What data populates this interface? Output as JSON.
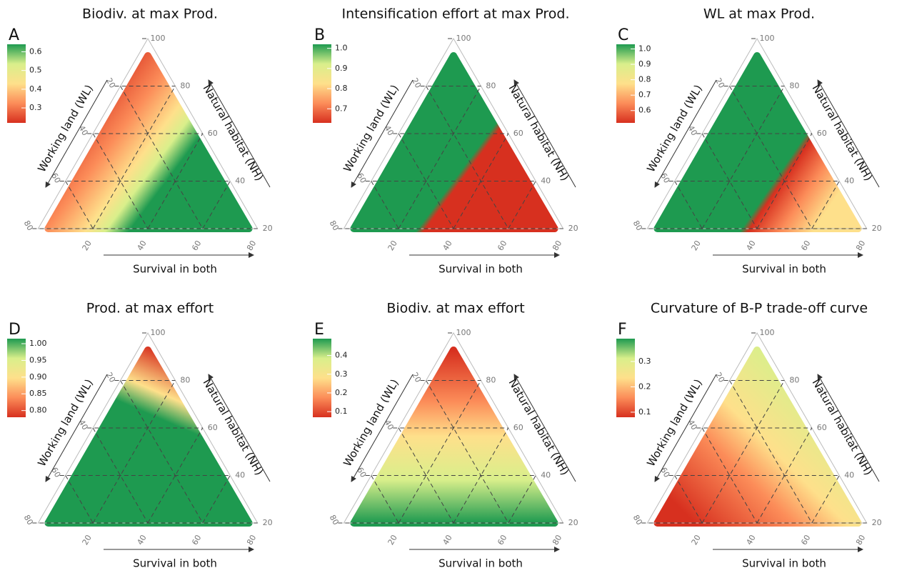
{
  "chart_data": [
    {
      "type": "ternary",
      "label": "A",
      "title": "Biodiv. at max Prod.",
      "colorbar": {
        "lim": [
          0.22,
          0.64
        ],
        "ticks": [
          0.3,
          0.4,
          0.5,
          0.6
        ],
        "colors": [
          "#d7301f",
          "#fc8d59",
          "#fee08b",
          "#d9ef8b",
          "#1e9a50"
        ]
      },
      "axes": {
        "left": {
          "title": "Working land (WL)",
          "lim": [
            0,
            80
          ],
          "ticks": [
            20,
            40,
            60,
            80
          ]
        },
        "right": {
          "title": "Natural habitat (NH)",
          "lim": [
            20,
            100
          ],
          "ticks": [
            20,
            40,
            60,
            80,
            100
          ]
        },
        "bottom": {
          "title": "Survival in both",
          "lim": [
            0,
            80
          ],
          "ticks": [
            20,
            40,
            60,
            80
          ]
        }
      }
    },
    {
      "type": "ternary",
      "label": "B",
      "title": "Intensification effort at max Prod.",
      "colorbar": {
        "lim": [
          0.63,
          1.02
        ],
        "ticks": [
          0.7,
          0.8,
          0.9,
          {
            "value": 1,
            "label": "1.0"
          }
        ],
        "colors": [
          "#d7301f",
          "#fc8d59",
          "#fee08b",
          "#d9ef8b",
          "#1e9a50"
        ]
      },
      "axes": {
        "left": {
          "title": "Working land (WL)",
          "lim": [
            0,
            80
          ],
          "ticks": [
            20,
            40,
            60,
            80
          ]
        },
        "right": {
          "title": "Natural habitat (NH)",
          "lim": [
            20,
            100
          ],
          "ticks": [
            20,
            40,
            60,
            80,
            100
          ]
        },
        "bottom": {
          "title": "Survival in both",
          "lim": [
            0,
            80
          ],
          "ticks": [
            20,
            40,
            60,
            80
          ]
        }
      }
    },
    {
      "type": "ternary",
      "label": "C",
      "title": "WL at max Prod.",
      "colorbar": {
        "lim": [
          0.52,
          1.03
        ],
        "ticks": [
          0.6,
          0.7,
          0.8,
          0.9,
          {
            "value": 1,
            "label": "1.0"
          }
        ],
        "colors": [
          "#d7301f",
          "#fc8d59",
          "#fee08b",
          "#d9ef8b",
          "#1e9a50"
        ]
      },
      "axes": {
        "left": {
          "title": "Working land (WL)",
          "lim": [
            0,
            80
          ],
          "ticks": [
            20,
            40,
            60,
            80
          ]
        },
        "right": {
          "title": "Natural habitat (NH)",
          "lim": [
            20,
            100
          ],
          "ticks": [
            20,
            40,
            60,
            80,
            100
          ]
        },
        "bottom": {
          "title": "Survival in both",
          "lim": [
            0,
            80
          ],
          "ticks": [
            20,
            40,
            60,
            80
          ]
        }
      }
    },
    {
      "type": "ternary",
      "label": "D",
      "title": "Prod. at max effort",
      "colorbar": {
        "lim": [
          0.78,
          1.015
        ],
        "ticks": [
          {
            "value": 0.8,
            "label": "0.80"
          },
          0.85,
          {
            "value": 0.9,
            "label": "0.90"
          },
          0.95,
          {
            "value": 1,
            "label": "1.00"
          }
        ],
        "colors": [
          "#d7301f",
          "#fc8d59",
          "#fee08b",
          "#d9ef8b",
          "#1e9a50"
        ]
      },
      "axes": {
        "left": {
          "title": "Working land (WL)",
          "lim": [
            0,
            80
          ],
          "ticks": [
            20,
            40,
            60,
            80
          ]
        },
        "right": {
          "title": "Natural habitat (NH)",
          "lim": [
            20,
            100
          ],
          "ticks": [
            20,
            40,
            60,
            80,
            100
          ]
        },
        "bottom": {
          "title": "Survival in both",
          "lim": [
            0,
            80
          ],
          "ticks": [
            20,
            40,
            60,
            80
          ]
        }
      }
    },
    {
      "type": "ternary",
      "label": "E",
      "title": "Biodiv. at max effort",
      "colorbar": {
        "lim": [
          0.07,
          0.49
        ],
        "ticks": [
          0.1,
          0.2,
          0.3,
          0.4
        ],
        "colors": [
          "#d7301f",
          "#fc8d59",
          "#fee08b",
          "#d9ef8b",
          "#1e9a50"
        ]
      },
      "axes": {
        "left": {
          "title": "Working land (WL)",
          "lim": [
            0,
            80
          ],
          "ticks": [
            20,
            40,
            60,
            80
          ]
        },
        "right": {
          "title": "Natural habitat (NH)",
          "lim": [
            20,
            100
          ],
          "ticks": [
            20,
            40,
            60,
            80,
            100
          ]
        },
        "bottom": {
          "title": "Survival in both",
          "lim": [
            0,
            80
          ],
          "ticks": [
            20,
            40,
            60,
            80
          ]
        }
      }
    },
    {
      "type": "ternary",
      "label": "F",
      "title": "Curvature of B-P trade-off curve",
      "colorbar": {
        "lim": [
          0.08,
          0.39
        ],
        "ticks": [
          0.1,
          0.2,
          0.3
        ],
        "colors": [
          "#d7301f",
          "#fc8d59",
          "#fee08b",
          "#d9ef8b",
          "#1e9a50"
        ]
      },
      "axes": {
        "left": {
          "title": "Working land (WL)",
          "lim": [
            0,
            80
          ],
          "ticks": [
            20,
            40,
            60,
            80
          ]
        },
        "right": {
          "title": "Natural habitat (NH)",
          "lim": [
            20,
            100
          ],
          "ticks": [
            20,
            40,
            60,
            80,
            100
          ]
        },
        "bottom": {
          "title": "Survival in both",
          "lim": [
            0,
            80
          ],
          "ticks": [
            20,
            40,
            60,
            80
          ]
        }
      }
    }
  ]
}
